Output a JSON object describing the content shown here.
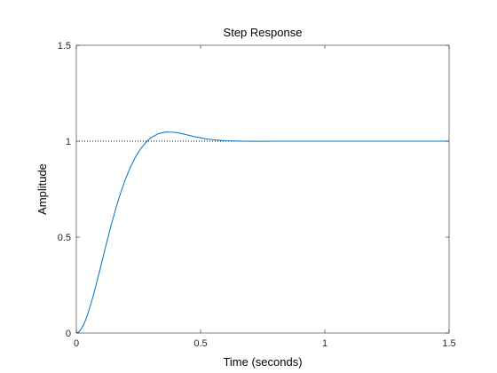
{
  "chart_data": {
    "type": "line",
    "title": "Step Response",
    "xlabel": "Time (seconds)",
    "ylabel": "Amplitude",
    "xlim": [
      0,
      1.5
    ],
    "ylim": [
      0,
      1.5
    ],
    "x_ticks": [
      0,
      0.5,
      1,
      1.5
    ],
    "x_tick_labels": [
      "0",
      "0.5",
      "1",
      "1.5"
    ],
    "y_ticks": [
      0,
      0.5,
      1,
      1.5
    ],
    "y_tick_labels": [
      "0",
      "0.5",
      "1",
      "1.5"
    ],
    "grid": false,
    "reference_line": {
      "y": 1,
      "style": "dotted",
      "color": "#000000"
    },
    "series": [
      {
        "color": "#0072BD",
        "x": [
          0,
          0.01,
          0.02,
          0.03,
          0.04,
          0.05,
          0.06,
          0.07,
          0.08,
          0.09,
          0.1,
          0.12,
          0.14,
          0.16,
          0.18,
          0.2,
          0.22,
          0.24,
          0.26,
          0.28,
          0.3,
          0.33,
          0.36,
          0.4,
          0.44,
          0.48,
          0.52,
          0.56,
          0.6,
          0.65,
          0.7,
          0.75,
          0.8,
          0.85,
          0.9,
          0.95,
          1.0,
          1.1,
          1.2,
          1.3,
          1.4,
          1.5
        ],
        "y": [
          0,
          0.0056,
          0.0213,
          0.0457,
          0.0775,
          0.1153,
          0.158,
          0.2043,
          0.2535,
          0.3045,
          0.3566,
          0.4608,
          0.5614,
          0.6545,
          0.7378,
          0.8101,
          0.8713,
          0.9218,
          0.9623,
          0.9941,
          1.0181,
          1.0392,
          1.048,
          1.0462,
          1.0348,
          1.0226,
          1.0128,
          1.0063,
          1.0025,
          1.0004,
          0.9996,
          0.9995,
          0.9997,
          0.9998,
          0.9999,
          1.0,
          1.0,
          1.0,
          1.0,
          1.0,
          1.0,
          1.0
        ]
      }
    ]
  }
}
